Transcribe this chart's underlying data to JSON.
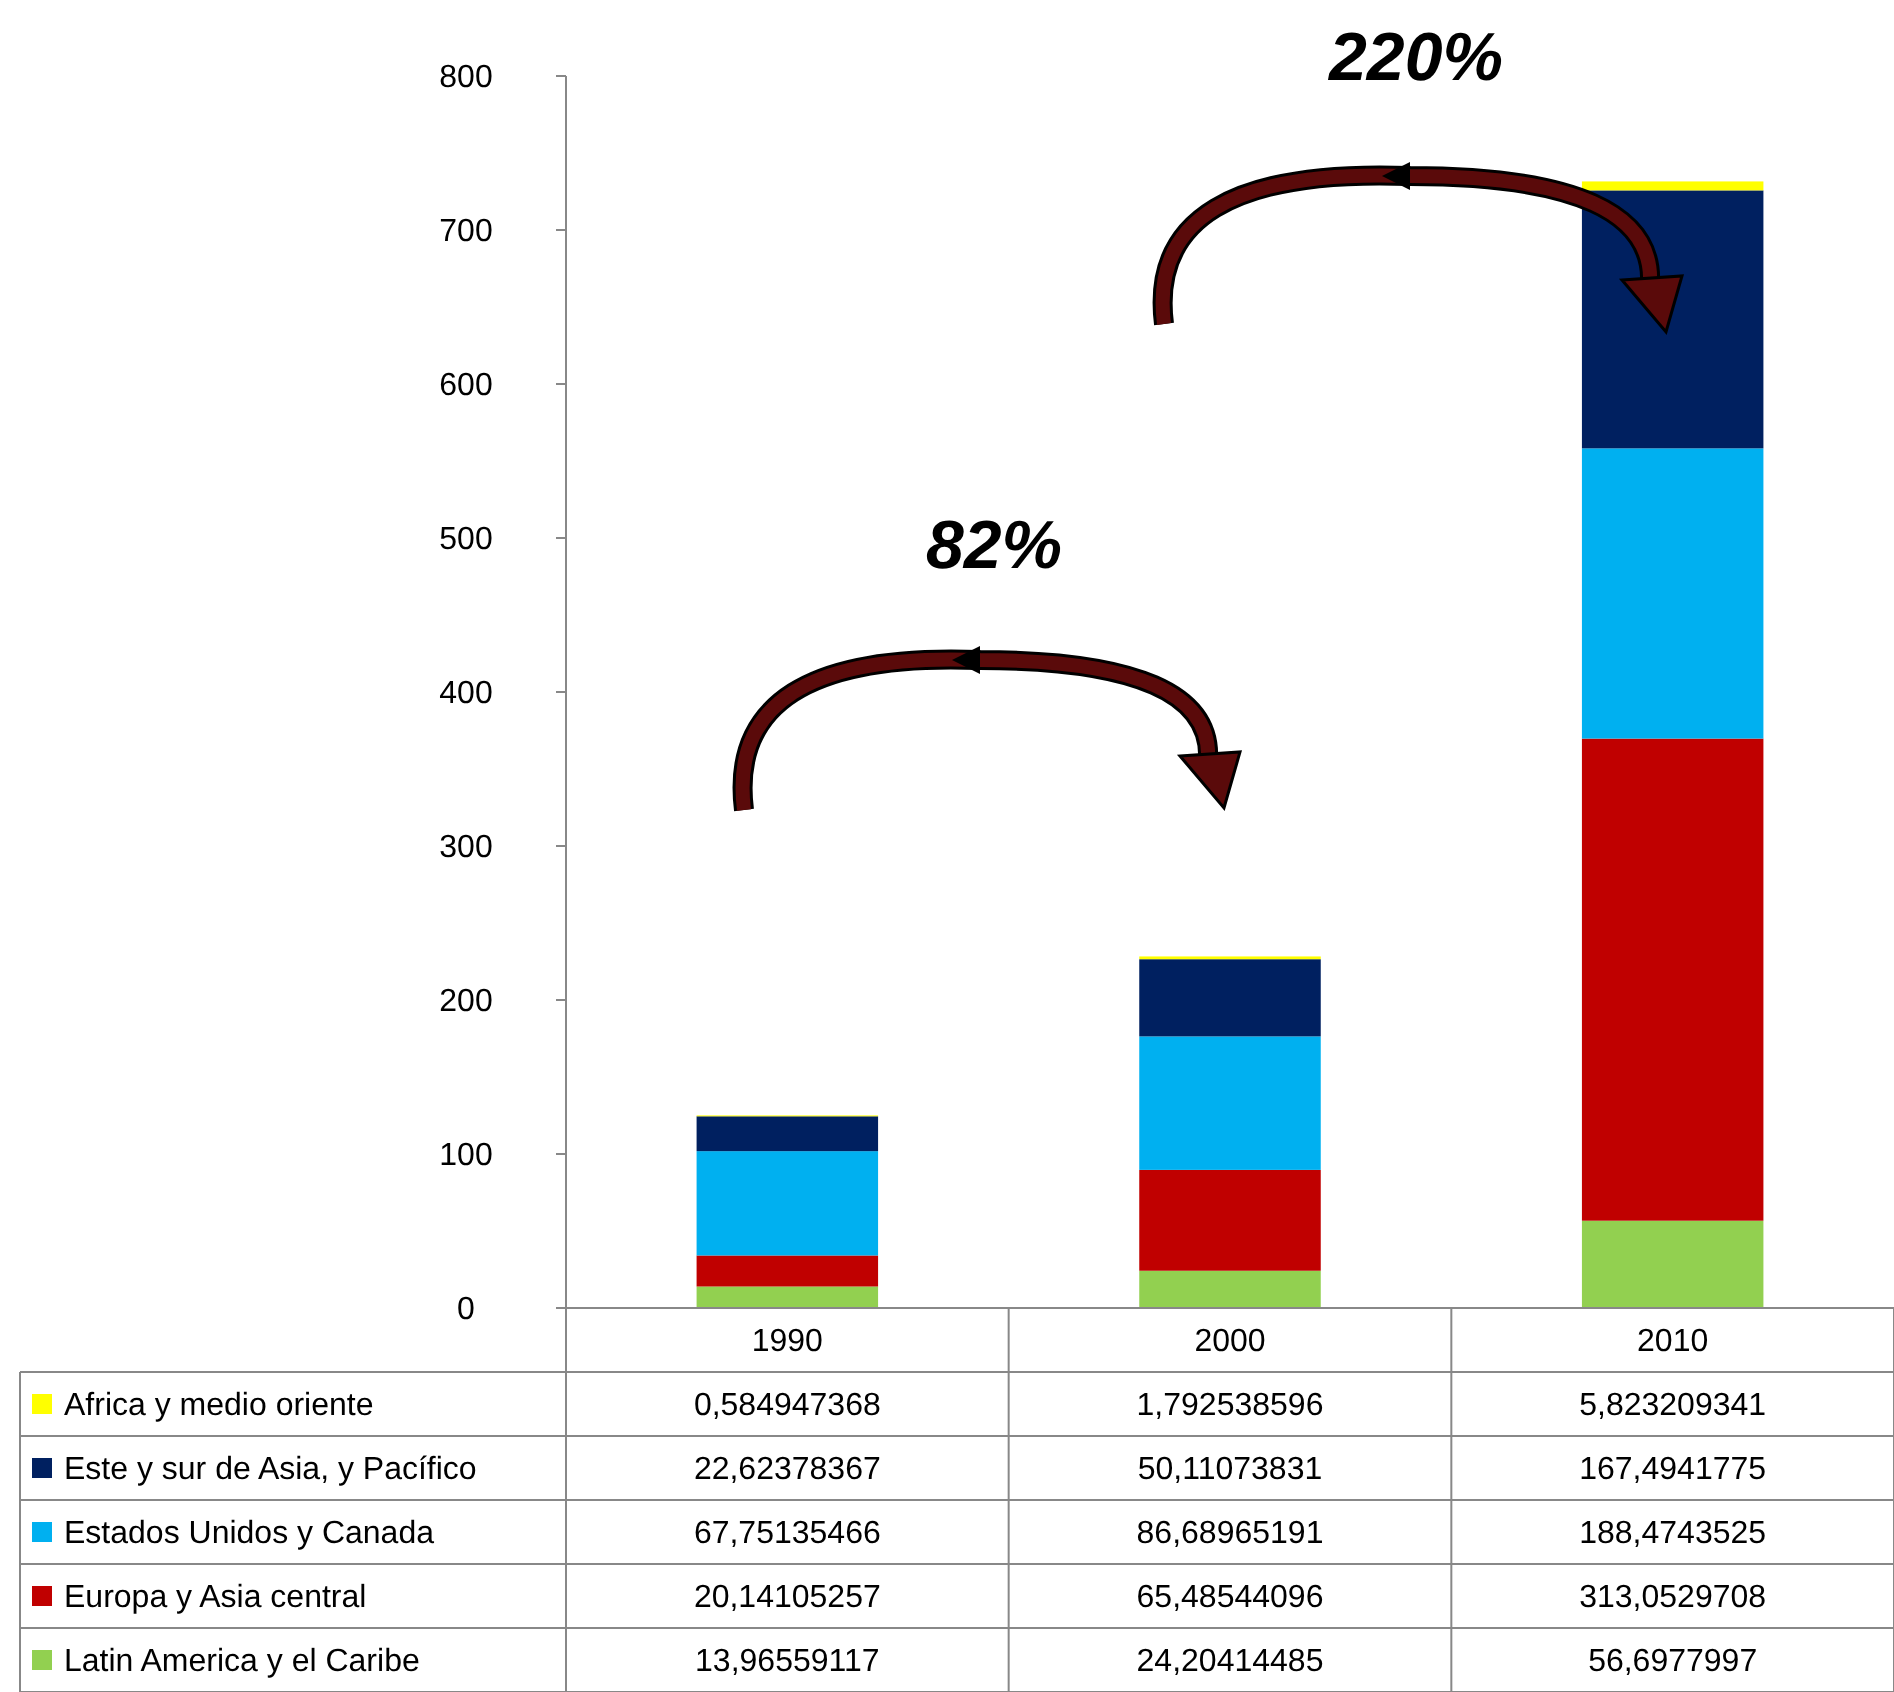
{
  "chart_data": {
    "type": "bar",
    "stacked": true,
    "categories": [
      "1990",
      "2000",
      "2010"
    ],
    "ylim": [
      0,
      800
    ],
    "yticks": [
      0,
      100,
      200,
      300,
      400,
      500,
      600,
      700,
      800
    ],
    "grid": false,
    "legend": "bottom",
    "series": [
      {
        "name": "Latin America y el Caribe",
        "color": "#92d050",
        "values": [
          13.96559117,
          24.20414485,
          56.6977997
        ],
        "value_labels": [
          "13,96559117",
          "24,20414485",
          "56,6977997"
        ]
      },
      {
        "name": "Europa y Asia central",
        "color": "#c00000",
        "values": [
          20.14105257,
          65.48544096,
          313.0529708
        ],
        "value_labels": [
          "20,14105257",
          "65,48544096",
          "313,0529708"
        ]
      },
      {
        "name": "Estados Unidos y Canada",
        "color": "#00b0f0",
        "values": [
          67.75135466,
          86.68965191,
          188.4743525
        ],
        "value_labels": [
          "67,75135466",
          "86,68965191",
          "188,4743525"
        ]
      },
      {
        "name": "Este y sur de Asia, y Pacífico",
        "color": "#002060",
        "values": [
          22.62378367,
          50.11073831,
          167.4941775
        ],
        "value_labels": [
          "22,62378367",
          "50,11073831",
          "167,4941775"
        ]
      },
      {
        "name": "Africa y medio oriente",
        "color": "#ffff00",
        "values": [
          0.584947368,
          1.792538596,
          5.823209341
        ],
        "value_labels": [
          "0,584947368",
          "1,792538596",
          "5,823209341"
        ]
      }
    ],
    "annotations": [
      "82%",
      "220%"
    ]
  }
}
